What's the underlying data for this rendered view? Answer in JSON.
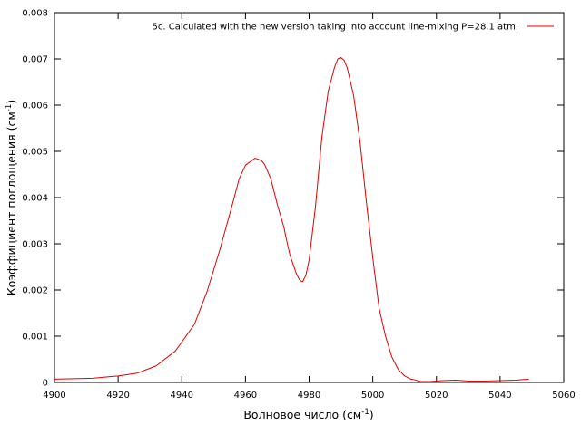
{
  "chart_data": {
    "type": "line",
    "title": "",
    "xlabel_main": "Волновое число (см",
    "xlabel_sup": "-1",
    "xlabel_end": ")",
    "ylabel_main": "Коэффициент поглощения (см",
    "ylabel_sup": "-1",
    "ylabel_end": ")",
    "xlim": [
      4900,
      5060
    ],
    "ylim": [
      0,
      0.008
    ],
    "x_ticks": [
      "4900",
      "4920",
      "4940",
      "4960",
      "4980",
      "5000",
      "5020",
      "5040",
      "5060"
    ],
    "y_ticks": [
      "0",
      "0.001",
      "0.002",
      "0.003",
      "0.004",
      "0.005",
      "0.006",
      "0.007",
      "0.008"
    ],
    "grid": false,
    "legend_position": "top-right",
    "series": [
      {
        "name": "5c. Calculated with the new  version taking into account line-mixing P=28.1 atm.",
        "color": "#dd0000",
        "x": [
          4900,
          4912,
          4920,
          4926,
          4932,
          4938,
          4944,
          4948,
          4952,
          4956,
          4958,
          4960,
          4962,
          4963,
          4964,
          4965,
          4966,
          4968,
          4970,
          4972,
          4973,
          4974,
          4975,
          4976,
          4977,
          4977.5,
          4978,
          4979,
          4980,
          4982,
          4984,
          4986,
          4988,
          4989,
          4990,
          4991,
          4992,
          4994,
          4996,
          4998,
          5000,
          5002,
          5004,
          5006,
          5008,
          5010,
          5012,
          5013,
          5014,
          5015,
          5016,
          5018,
          5020,
          5022,
          5026,
          5030,
          5035,
          5040,
          5045,
          5049
        ],
        "y": [
          7e-05,
          9e-05,
          0.00014,
          0.0002,
          0.00036,
          0.00068,
          0.00126,
          0.00198,
          0.00288,
          0.00388,
          0.0044,
          0.0047,
          0.0048,
          0.00485,
          0.00483,
          0.0048,
          0.00472,
          0.0044,
          0.00385,
          0.00338,
          0.00305,
          0.00275,
          0.00255,
          0.00235,
          0.00222,
          0.00219,
          0.00218,
          0.00232,
          0.00265,
          0.0038,
          0.0053,
          0.0063,
          0.00682,
          0.007,
          0.00703,
          0.00697,
          0.0068,
          0.0062,
          0.0052,
          0.0039,
          0.0027,
          0.0016,
          0.001,
          0.00055,
          0.00028,
          0.00014,
          7e-05,
          6e-05,
          4e-05,
          2e-05,
          2e-05,
          2e-05,
          3e-05,
          4e-05,
          5e-05,
          3e-05,
          3e-05,
          4e-05,
          5e-05,
          7e-05
        ]
      }
    ]
  }
}
